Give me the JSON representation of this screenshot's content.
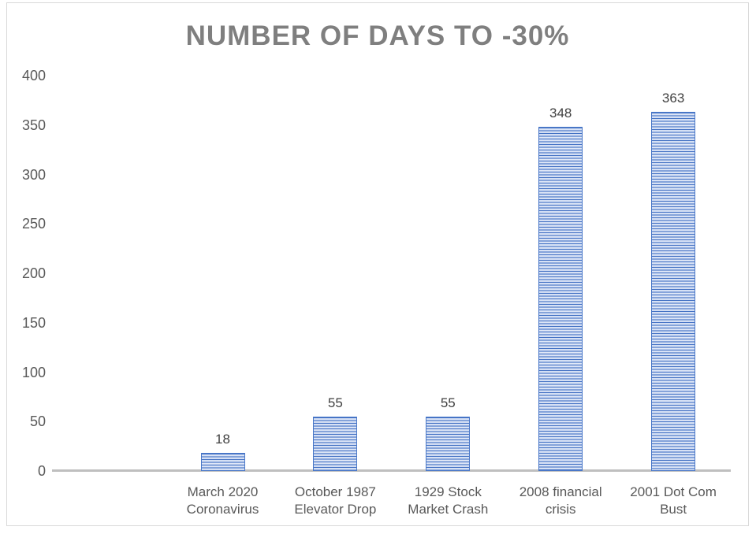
{
  "chart_data": {
    "type": "bar",
    "title": "NUMBER OF DAYS TO -30%",
    "categories": [
      "March 2020 Coronavirus",
      "October 1987 Elevator Drop",
      "1929 Stock Market Crash",
      "2008 financial crisis",
      "2001 Dot Com Bust"
    ],
    "category_lines": [
      [
        "March 2020",
        "Coronavirus"
      ],
      [
        "October 1987",
        "Elevator Drop"
      ],
      [
        "1929 Stock",
        "Market Crash"
      ],
      [
        "2008 financial",
        "crisis"
      ],
      [
        "2001 Dot Com",
        "Bust"
      ]
    ],
    "values": [
      18,
      55,
      55,
      348,
      363
    ],
    "data_labels": [
      "18",
      "55",
      "55",
      "348",
      "363"
    ],
    "xlabel": "",
    "ylabel": "",
    "y_ticks": [
      0,
      50,
      100,
      150,
      200,
      250,
      300,
      350,
      400
    ],
    "ylim": [
      0,
      400
    ],
    "grid": false,
    "legend_position": "none",
    "style": {
      "bar_pattern": "horizontal-stripes",
      "bar_stripe_dark": "#4472c4",
      "bar_stripe_light": "#e0e8f7",
      "bar_border": "#4a78c8",
      "title_color": "#7f7f7f",
      "axis_label_color": "#595959",
      "data_label_color": "#404040",
      "axis_line_color": "#bfbfbf",
      "frame_border_color": "#d9d9d9"
    }
  }
}
